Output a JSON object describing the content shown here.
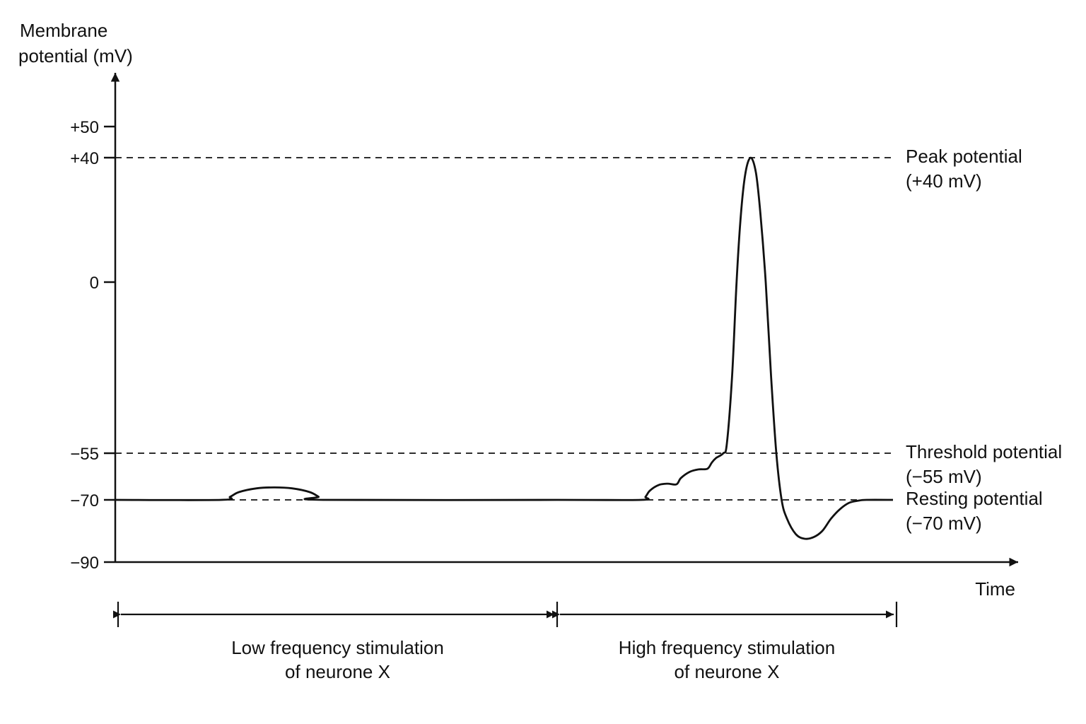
{
  "chart_data": {
    "type": "line",
    "ylabel": [
      "Membrane",
      "potential (mV)"
    ],
    "xlabel": "Time",
    "ylim": [
      -90,
      55
    ],
    "yticks": [
      {
        "value": 50,
        "label": "+50"
      },
      {
        "value": 40,
        "label": "+40"
      },
      {
        "value": 0,
        "label": "0"
      },
      {
        "value": -55,
        "label": "−55"
      },
      {
        "value": -70,
        "label": "−70"
      },
      {
        "value": -90,
        "label": "−90"
      }
    ],
    "reference_lines": [
      {
        "value": 40,
        "label": [
          "Peak potential",
          "(+40 mV)"
        ]
      },
      {
        "value": -55,
        "label": [
          "Threshold potential",
          "(−55 mV)"
        ]
      },
      {
        "value": -70,
        "label": [
          "Resting potential",
          "(−70 mV)"
        ]
      }
    ],
    "series": [
      {
        "points": [
          [
            0,
            -70
          ],
          [
            12,
            -70
          ],
          [
            13,
            -69
          ],
          [
            14,
            -67.5
          ],
          [
            16,
            -66.3
          ],
          [
            18,
            -66
          ],
          [
            20,
            -66.3
          ],
          [
            22,
            -67.5
          ],
          [
            23,
            -69
          ],
          [
            23.5,
            -70
          ],
          [
            50,
            -70
          ],
          [
            59.5,
            -70
          ],
          [
            60,
            -69
          ],
          [
            60.5,
            -67
          ],
          [
            61.5,
            -65.2
          ],
          [
            62.5,
            -64.8
          ],
          [
            63.5,
            -65
          ],
          [
            64,
            -63
          ],
          [
            65,
            -61
          ],
          [
            66,
            -60.2
          ],
          [
            67,
            -60
          ],
          [
            67.5,
            -58
          ],
          [
            68,
            -56.5
          ],
          [
            68.8,
            -55
          ],
          [
            69.2,
            -52
          ],
          [
            69.8,
            -30
          ],
          [
            70.3,
            0
          ],
          [
            70.8,
            22
          ],
          [
            71.3,
            35
          ],
          [
            71.9,
            40
          ],
          [
            72.5,
            35
          ],
          [
            73,
            22
          ],
          [
            73.6,
            0
          ],
          [
            74.2,
            -30
          ],
          [
            74.8,
            -55
          ],
          [
            75.4,
            -70
          ],
          [
            76,
            -76
          ],
          [
            77,
            -81
          ],
          [
            78,
            -82.5
          ],
          [
            79,
            -82
          ],
          [
            80,
            -80
          ],
          [
            81,
            -76
          ],
          [
            82,
            -73
          ],
          [
            83,
            -71
          ],
          [
            84,
            -70.3
          ],
          [
            85,
            -70
          ],
          [
            88,
            -70
          ]
        ]
      }
    ],
    "periods": [
      {
        "label": [
          "Low frequency stimulation",
          "of neurone X"
        ],
        "x": [
          0,
          50
        ]
      },
      {
        "label": [
          "High frequency stimulation",
          "of neurone X"
        ],
        "x": [
          50,
          88
        ]
      }
    ]
  }
}
